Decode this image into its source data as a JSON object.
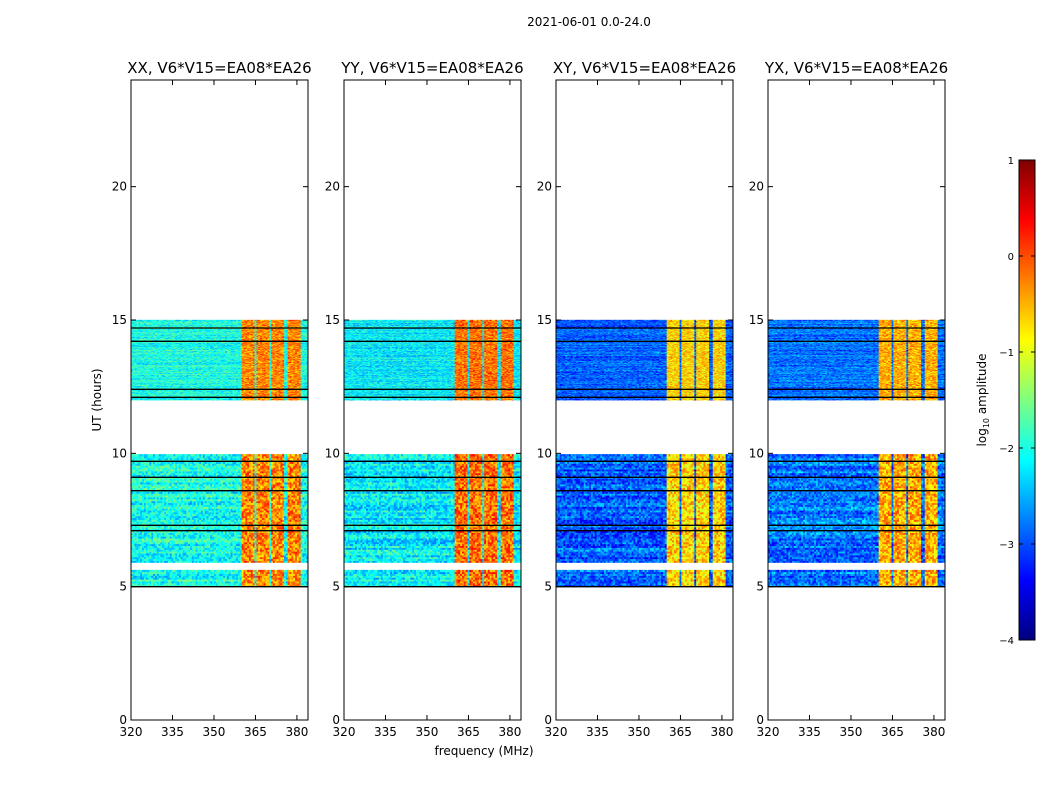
{
  "figure": {
    "suptitle": "2021-06-01 0.0-24.0",
    "xlabel": "frequency (MHz)",
    "ylabel": "UT (hours)",
    "colorbar": {
      "label": "log$_{10}$ amplitude",
      "label_main": "log",
      "label_sub": "10",
      "label_tail": " amplitude",
      "vmin": -4,
      "vmax": 1,
      "ticks": [
        1,
        0,
        -1,
        -2,
        -3,
        -4
      ],
      "tick_labels": [
        "1",
        "0",
        "−1",
        "−2",
        "−3",
        "−4"
      ],
      "colormap": "jet"
    }
  },
  "chart_data": {
    "type": "heatmap",
    "x_range": [
      320,
      384
    ],
    "y_range": [
      0,
      24
    ],
    "xticks": [
      320,
      335,
      350,
      365,
      380
    ],
    "xtick_labels": [
      "320",
      "335",
      "350",
      "365",
      "380"
    ],
    "yticks": [
      0,
      5,
      10,
      15,
      20
    ],
    "ytick_labels": [
      "0",
      "5",
      "10",
      "15",
      "20"
    ],
    "panels": [
      {
        "title": "XX, V6*V15=EA08*EA26",
        "background_level": -2.0,
        "band_level": -0.5
      },
      {
        "title": "YY, V6*V15=EA08*EA26",
        "background_level": -2.2,
        "band_level": -0.4
      },
      {
        "title": "XY, V6*V15=EA08*EA26",
        "background_level": -2.9,
        "band_level": -0.9
      },
      {
        "title": "YX, V6*V15=EA08*EA26",
        "background_level": -2.8,
        "band_level": -0.7
      }
    ],
    "observed_blocks_ut": [
      [
        5.0,
        12.0
      ],
      [
        12.0,
        15.0
      ]
    ],
    "gaps_ut": [
      [
        10.0,
        12.0
      ],
      [
        5.6,
        5.9
      ]
    ],
    "rfi_band_mhz": [
      360,
      381
    ],
    "rfi_band_columns_mhz": [
      360,
      364.5,
      365.5,
      370,
      371,
      375.5,
      376.5,
      381
    ],
    "dropout_lines_ut": [
      5.0,
      7.1,
      7.3,
      8.6,
      9.1,
      9.7,
      12.1,
      12.4,
      14.2,
      14.7
    ]
  }
}
